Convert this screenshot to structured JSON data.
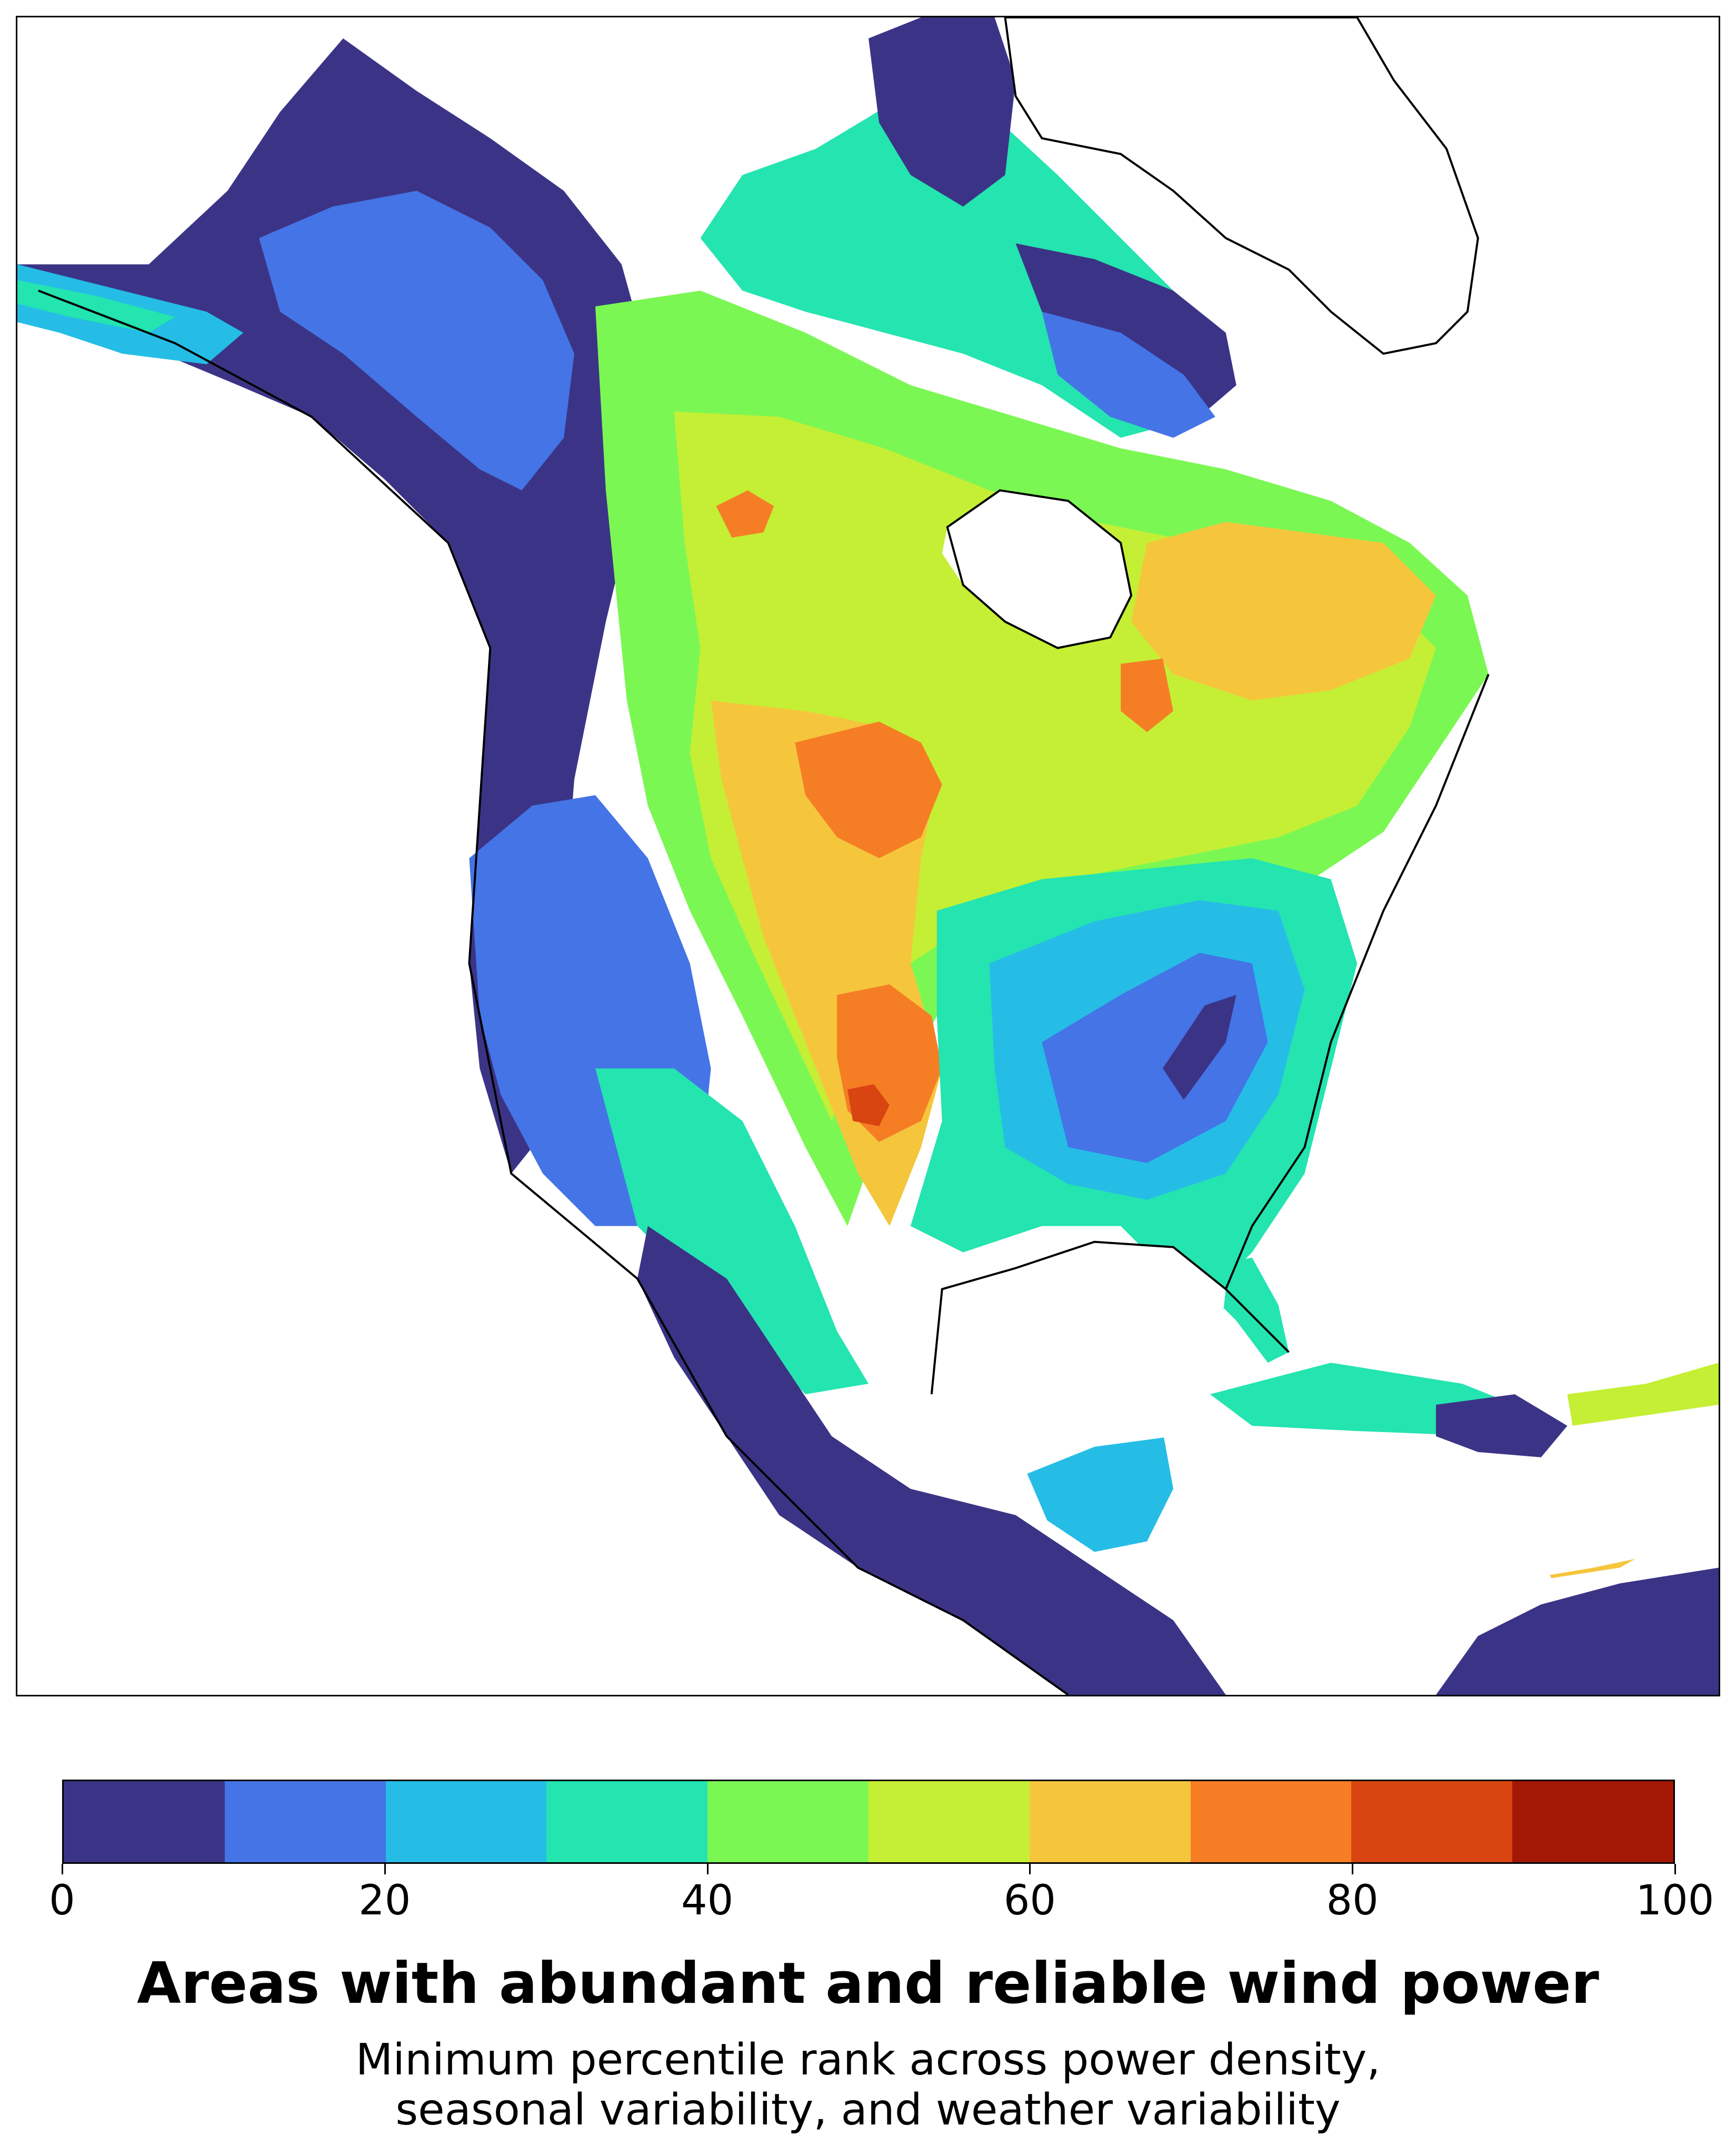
{
  "title": "Areas with abundant and reliable wind power",
  "subtitle_lines": [
    "Minimum percentile rank across power density,",
    "seasonal variability, and weather variability"
  ],
  "colorbar": {
    "min": 0,
    "max": 100,
    "step": 10,
    "ticks": [
      "0",
      "20",
      "40",
      "60",
      "80",
      "100"
    ],
    "colors": [
      "#3b3486",
      "#4474e6",
      "#25bde6",
      "#24e4b0",
      "#7bf754",
      "#c5ef34",
      "#f5c63c",
      "#f57e25",
      "#d94511",
      "#a31705"
    ]
  },
  "map": {
    "region": "North America",
    "colors": {
      "level_0_10": "#3b3486",
      "level_10_20": "#4474e6",
      "level_20_30": "#25bde6",
      "level_30_40": "#24e4b0",
      "level_40_50": "#7bf754",
      "level_50_60": "#c5ef34",
      "level_60_70": "#f5c63c",
      "level_70_80": "#f57e25",
      "level_80_90": "#d94511",
      "coastline": "#000000"
    }
  }
}
